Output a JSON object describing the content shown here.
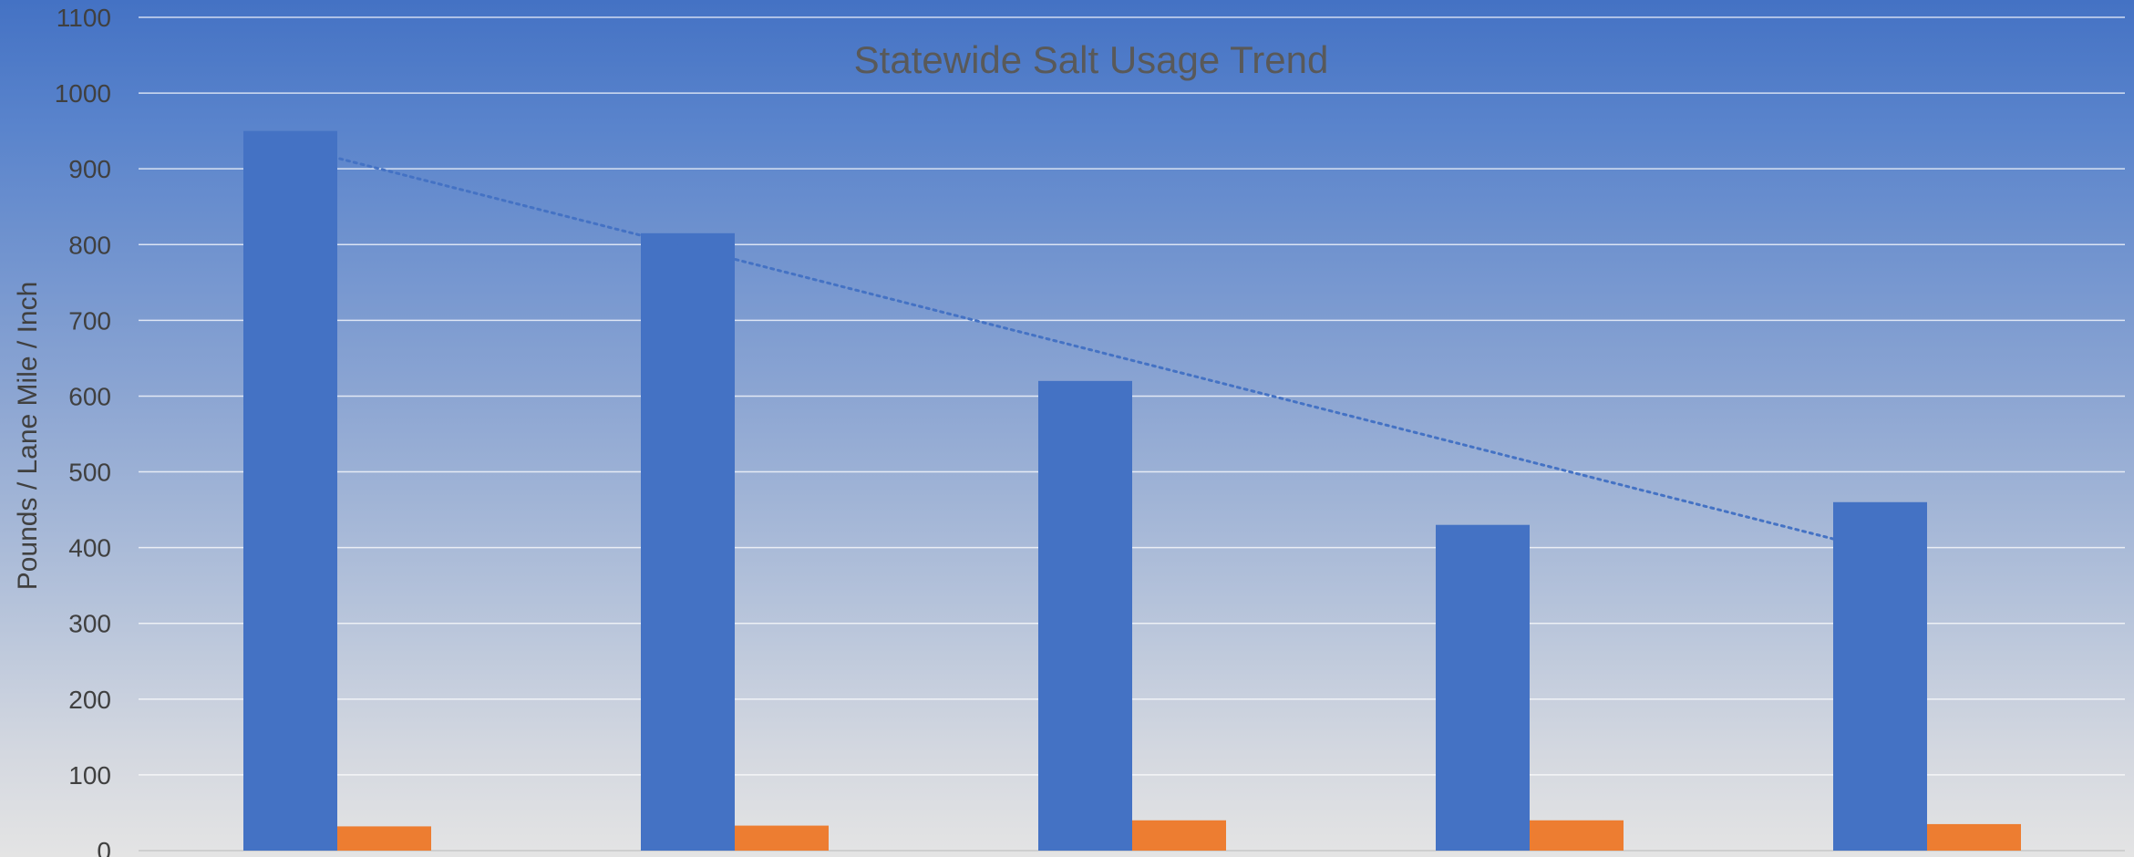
{
  "chart_data": {
    "type": "bar",
    "title": "Statewide Salt Usage Trend",
    "xlabel": "",
    "ylabel": "Pounds / Lane Mile / Inch",
    "ylim": [
      0,
      1100
    ],
    "yticks": [
      0,
      100,
      200,
      300,
      400,
      500,
      600,
      700,
      800,
      900,
      1000,
      1100
    ],
    "categories": [
      "",
      "",
      "",
      "",
      ""
    ],
    "series": [
      {
        "values": [
          950,
          815,
          620,
          430,
          460
        ],
        "color": "#4472c4"
      },
      {
        "values": [
          32,
          33,
          40,
          40,
          35
        ],
        "color": "#ed7d31"
      }
    ],
    "trendline": {
      "series": 0,
      "style": "dotted",
      "color": "#4472c4",
      "values": [
        930,
        803,
        675,
        548,
        380
      ]
    },
    "grid": true,
    "legend": "none"
  }
}
